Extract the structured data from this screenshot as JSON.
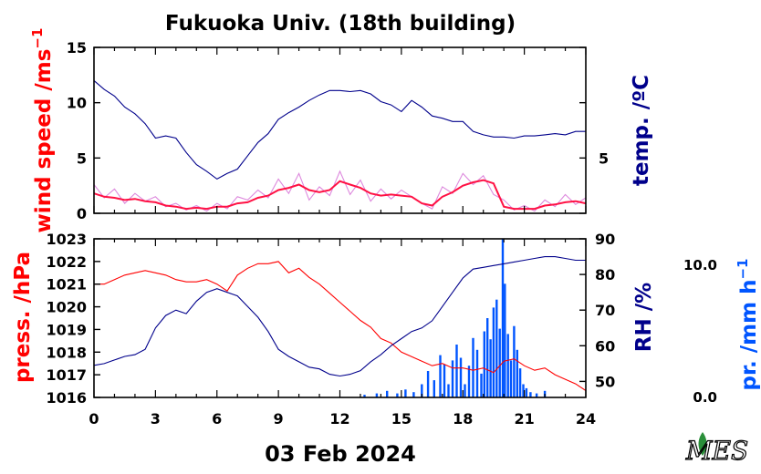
{
  "title": "Fukuoka Univ. (18th building)",
  "date_label": "03 Feb 2024",
  "logo_text": "MES",
  "colors": {
    "red": "#ff0000",
    "navy": "#00008b",
    "pink": "#dd88dd",
    "crimson": "#ff1144",
    "blue": "#0055ff"
  },
  "chart_data": [
    {
      "type": "line",
      "name": "upper",
      "x_range": [
        0,
        24
      ],
      "x_ticks": [
        "0",
        "3",
        "6",
        "9",
        "12",
        "15",
        "18",
        "21",
        "24"
      ],
      "left_axis": {
        "label_main": "wind speed /ms",
        "label_sup": "−1",
        "ylim": [
          0,
          15
        ],
        "ticks": [
          "0",
          "5",
          "10",
          "15"
        ],
        "color": "#ff0000"
      },
      "right_axis": {
        "label": "temp. /ºC",
        "ticks": [
          "5"
        ],
        "color": "#00008b"
      },
      "series": [
        {
          "name": "temperature",
          "axis": "right",
          "color": "#00008b",
          "x": [
            0,
            0.5,
            1,
            1.5,
            2,
            2.5,
            3,
            3.5,
            4,
            4.5,
            5,
            5.5,
            6,
            6.5,
            7,
            7.5,
            8,
            8.5,
            9,
            9.5,
            10,
            10.5,
            11,
            11.5,
            12,
            12.5,
            13,
            13.5,
            14,
            14.5,
            15,
            15.5,
            16,
            16.5,
            17,
            17.5,
            18,
            18.5,
            19,
            19.5,
            20,
            20.5,
            21,
            21.5,
            22,
            22.5,
            23,
            23.5,
            24
          ],
          "y": [
            12,
            11.2,
            10.6,
            9.6,
            9,
            8.1,
            6.8,
            7,
            6.8,
            5.5,
            4.4,
            3.8,
            3.1,
            3.6,
            4,
            5.2,
            6.4,
            7.2,
            8.5,
            9.1,
            9.6,
            10.2,
            10.7,
            11.1,
            11.1,
            11,
            11.1,
            10.8,
            10.1,
            9.8,
            9.2,
            10.2,
            9.6,
            8.8,
            8.6,
            8.3,
            8.3,
            7.4,
            7.1,
            6.9,
            6.9,
            6.8,
            7,
            7,
            7.1,
            7.2,
            7.1,
            7.4,
            7.4
          ],
          "y_scale": "left-units"
        },
        {
          "name": "wind speed (raw)",
          "axis": "left",
          "color": "#dd88dd",
          "x": [
            0,
            0.5,
            1,
            1.5,
            2,
            2.5,
            3,
            3.5,
            4,
            4.5,
            5,
            5.5,
            6,
            6.5,
            7,
            7.5,
            8,
            8.5,
            9,
            9.5,
            10,
            10.5,
            11,
            11.5,
            12,
            12.5,
            13,
            13.5,
            14,
            14.5,
            15,
            15.5,
            16,
            16.5,
            17,
            17.5,
            18,
            18.5,
            19,
            19.5,
            20,
            20.5,
            21,
            21.5,
            22,
            22.5,
            23,
            23.5,
            24
          ],
          "y": [
            2.6,
            1.4,
            2.2,
            0.9,
            1.8,
            1.1,
            1.5,
            0.6,
            0.9,
            0.3,
            0.7,
            0.2,
            0.9,
            0.4,
            1.5,
            1.2,
            2.1,
            1.4,
            3.1,
            1.8,
            3.6,
            1.2,
            2.4,
            1.6,
            3.8,
            1.7,
            3.0,
            1.1,
            2.2,
            1.3,
            2.1,
            1.5,
            0.9,
            0.4,
            2.4,
            1.8,
            3.6,
            2.6,
            3.4,
            1.7,
            1.2,
            0.3,
            0.7,
            0.2,
            1.2,
            0.6,
            1.7,
            0.8,
            1.4
          ]
        },
        {
          "name": "wind speed (mean)",
          "axis": "left",
          "color": "#ff1144",
          "x": [
            0,
            0.5,
            1,
            1.5,
            2,
            2.5,
            3,
            3.5,
            4,
            4.5,
            5,
            5.5,
            6,
            6.5,
            7,
            7.5,
            8,
            8.5,
            9,
            9.5,
            10,
            10.5,
            11,
            11.5,
            12,
            12.5,
            13,
            13.5,
            14,
            14.5,
            15,
            15.5,
            16,
            16.5,
            17,
            17.5,
            18,
            18.5,
            19,
            19.5,
            20,
            20.5,
            21,
            21.5,
            22,
            22.5,
            23,
            23.5,
            24
          ],
          "y": [
            1.8,
            1.5,
            1.4,
            1.2,
            1.3,
            1.1,
            1.0,
            0.7,
            0.6,
            0.4,
            0.5,
            0.4,
            0.6,
            0.6,
            0.9,
            1.0,
            1.4,
            1.6,
            2.1,
            2.3,
            2.6,
            2.1,
            1.9,
            2.1,
            2.9,
            2.6,
            2.3,
            1.8,
            1.6,
            1.7,
            1.6,
            1.5,
            0.9,
            0.7,
            1.5,
            1.9,
            2.5,
            2.8,
            3.0,
            2.7,
            0.6,
            0.4,
            0.4,
            0.4,
            0.7,
            0.8,
            1.0,
            1.1,
            0.9
          ]
        }
      ]
    },
    {
      "type": "line",
      "name": "lower",
      "x_range": [
        0,
        24
      ],
      "x_ticks": [
        "0",
        "3",
        "6",
        "9",
        "12",
        "15",
        "18",
        "21",
        "24"
      ],
      "left_axis": {
        "label": "press. /hPa",
        "ylim": [
          1016,
          1023
        ],
        "ticks": [
          "1016",
          "1017",
          "1018",
          "1019",
          "1020",
          "1021",
          "1022",
          "1023"
        ],
        "color": "#ff0000"
      },
      "right_axis": {
        "label": "RH /%",
        "ylim": [
          45.5,
          90
        ],
        "ticks": [
          "50",
          "60",
          "70",
          "80",
          "90"
        ],
        "color": "#00008b"
      },
      "precip_axis": {
        "label_main": "pr. /mm h",
        "label_sup": "−1",
        "ylim": [
          0,
          12
        ],
        "ticks": [
          "0.0",
          "10.0"
        ],
        "color": "#0055ff"
      },
      "series": [
        {
          "name": "pressure",
          "axis": "left",
          "color": "#ff0000",
          "x": [
            0,
            0.5,
            1,
            1.5,
            2,
            2.5,
            3,
            3.5,
            4,
            4.5,
            5,
            5.5,
            6,
            6.5,
            7,
            7.5,
            8,
            8.5,
            9,
            9.5,
            10,
            10.5,
            11,
            11.5,
            12,
            12.5,
            13,
            13.5,
            14,
            14.5,
            15,
            15.5,
            16,
            16.5,
            17,
            17.5,
            18,
            18.5,
            19,
            19.5,
            20,
            20.5,
            21,
            21.5,
            22,
            22.5,
            23,
            23.5,
            24
          ],
          "y": [
            1021,
            1021,
            1021.2,
            1021.4,
            1021.5,
            1021.6,
            1021.5,
            1021.4,
            1021.2,
            1021.1,
            1021.1,
            1021.2,
            1021,
            1020.7,
            1021.4,
            1021.7,
            1021.9,
            1021.9,
            1022,
            1021.5,
            1021.7,
            1021.3,
            1021,
            1020.6,
            1020.2,
            1019.8,
            1019.4,
            1019.1,
            1018.6,
            1018.4,
            1018,
            1017.8,
            1017.6,
            1017.4,
            1017.5,
            1017.3,
            1017.3,
            1017.2,
            1017.3,
            1017.1,
            1017.6,
            1017.7,
            1017.4,
            1017.2,
            1017.3,
            1017,
            1016.8,
            1016.6,
            1016.3
          ]
        },
        {
          "name": "relative humidity",
          "axis": "right",
          "color": "#00008b",
          "x": [
            0,
            0.5,
            1,
            1.5,
            2,
            2.5,
            3,
            3.5,
            4,
            4.5,
            5,
            5.5,
            6,
            6.5,
            7,
            7.5,
            8,
            8.5,
            9,
            9.5,
            10,
            10.5,
            11,
            11.5,
            12,
            12.5,
            13,
            13.5,
            14,
            14.5,
            15,
            15.5,
            16,
            16.5,
            17,
            17.5,
            18,
            18.5,
            19,
            19.5,
            20,
            20.5,
            21,
            21.5,
            22,
            22.5,
            23,
            23.5,
            24
          ],
          "y": [
            54.5,
            55,
            56,
            57,
            57.5,
            59,
            65,
            68.5,
            70,
            69,
            72.5,
            75,
            76,
            75,
            74,
            71,
            68,
            64,
            59,
            57,
            55.5,
            54,
            53.5,
            52,
            51.5,
            52,
            53,
            55.5,
            57.5,
            60,
            62,
            64,
            65,
            67,
            71,
            75,
            79,
            81.5,
            82,
            82.5,
            83,
            83.5,
            84,
            84.5,
            85,
            85,
            84.5,
            84,
            84
          ]
        },
        {
          "name": "precipitation",
          "axis": "precip",
          "type": "bar",
          "color": "#0055ff",
          "x": [
            13.2,
            13.8,
            14.3,
            14.8,
            15.2,
            15.6,
            16.0,
            16.3,
            16.6,
            16.9,
            17.1,
            17.3,
            17.5,
            17.7,
            17.9,
            18.1,
            18.3,
            18.5,
            18.7,
            18.9,
            19.05,
            19.2,
            19.35,
            19.5,
            19.65,
            19.8,
            19.95,
            20.05,
            20.2,
            20.35,
            20.5,
            20.65,
            20.8,
            20.95,
            21.1,
            21.3,
            21.6,
            22.0
          ],
          "y": [
            0.2,
            0.3,
            0.5,
            0.3,
            0.6,
            0.4,
            1.0,
            2.0,
            1.3,
            3.2,
            2.5,
            1.0,
            2.8,
            4.0,
            3.0,
            1.0,
            2.4,
            4.5,
            3.6,
            1.8,
            5.0,
            6.0,
            4.4,
            6.8,
            7.4,
            5.2,
            12.0,
            8.6,
            4.8,
            2.8,
            5.4,
            3.6,
            2.2,
            1.0,
            0.7,
            0.4,
            0.3,
            0.5
          ]
        }
      ]
    }
  ]
}
